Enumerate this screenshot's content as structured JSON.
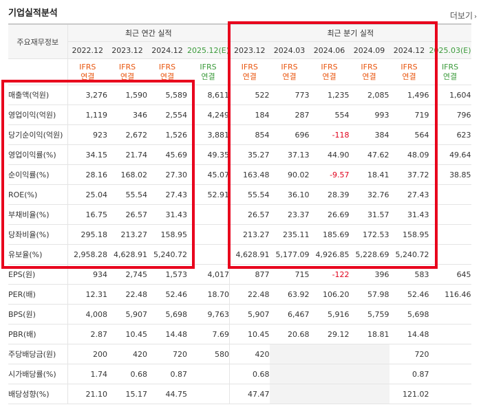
{
  "section_title": "기업실적분석",
  "more_link": "더보기",
  "more_icon": "chevron-right-icon",
  "corner_label": "주요재무정보",
  "group_annual": "최근 연간 실적",
  "group_quarterly": "최근 분기 실적",
  "periods": [
    "2022.12",
    "2023.12",
    "2024.12",
    "2025.12(E)",
    "2023.12",
    "2024.03",
    "2024.06",
    "2024.09",
    "2024.12",
    "2025.03(E)"
  ],
  "standard_line1": "IFRS",
  "standard_line2": "연결",
  "rows": [
    {
      "label": "매출액(억원)",
      "values": [
        "3,276",
        "1,590",
        "5,589",
        "8,611",
        "522",
        "773",
        "1,235",
        "2,085",
        "1,496",
        "1,604"
      ]
    },
    {
      "label": "영업이익(억원)",
      "values": [
        "1,119",
        "346",
        "2,554",
        "4,249",
        "184",
        "287",
        "554",
        "993",
        "719",
        "796"
      ]
    },
    {
      "label": "당기순이익(억원)",
      "values": [
        "923",
        "2,672",
        "1,526",
        "3,881",
        "854",
        "696",
        "-118",
        "384",
        "564",
        "623"
      ]
    },
    {
      "label": "영업이익률(%)",
      "values": [
        "34.15",
        "21.74",
        "45.69",
        "49.35",
        "35.27",
        "37.13",
        "44.90",
        "47.62",
        "48.09",
        "49.64"
      ]
    },
    {
      "label": "순이익률(%)",
      "values": [
        "28.16",
        "168.02",
        "27.30",
        "45.07",
        "163.48",
        "90.02",
        "-9.57",
        "18.41",
        "37.72",
        "38.85"
      ]
    },
    {
      "label": "ROE(%)",
      "values": [
        "25.04",
        "55.54",
        "27.43",
        "52.91",
        "55.54",
        "36.10",
        "28.39",
        "32.76",
        "27.43",
        ""
      ]
    },
    {
      "label": "부채비율(%)",
      "values": [
        "16.75",
        "26.57",
        "31.43",
        "",
        "26.57",
        "23.37",
        "26.69",
        "31.57",
        "31.43",
        ""
      ]
    },
    {
      "label": "당좌비율(%)",
      "values": [
        "295.18",
        "213.27",
        "158.95",
        "",
        "213.27",
        "235.11",
        "185.69",
        "172.53",
        "158.95",
        ""
      ]
    },
    {
      "label": "유보율(%)",
      "values": [
        "2,958.28",
        "4,628.91",
        "5,240.72",
        "",
        "4,628.91",
        "5,177.09",
        "4,926.85",
        "5,228.69",
        "5,240.72",
        ""
      ]
    },
    {
      "label": "EPS(원)",
      "values": [
        "934",
        "2,745",
        "1,573",
        "4,017",
        "877",
        "715",
        "-122",
        "396",
        "583",
        "645"
      ]
    },
    {
      "label": "PER(배)",
      "values": [
        "12.31",
        "22.48",
        "52.46",
        "18.70",
        "22.48",
        "63.92",
        "106.20",
        "57.98",
        "52.46",
        "116.46"
      ]
    },
    {
      "label": "BPS(원)",
      "values": [
        "4,008",
        "5,907",
        "5,698",
        "9,763",
        "5,907",
        "6,467",
        "5,916",
        "5,759",
        "5,698",
        ""
      ]
    },
    {
      "label": "PBR(배)",
      "values": [
        "2.87",
        "10.45",
        "14.48",
        "7.69",
        "10.45",
        "20.68",
        "29.12",
        "18.81",
        "14.48",
        ""
      ]
    },
    {
      "label": "주당배당금(원)",
      "values": [
        "200",
        "420",
        "720",
        "580",
        "420",
        "",
        "",
        "",
        "720",
        ""
      ]
    },
    {
      "label": "시가배당률(%)",
      "values": [
        "1.74",
        "0.68",
        "0.87",
        "",
        "0.68",
        "",
        "",
        "",
        "0.87",
        ""
      ]
    },
    {
      "label": "배당성향(%)",
      "values": [
        "21.10",
        "15.17",
        "44.75",
        "",
        "47.47",
        "",
        "",
        "",
        "121.02",
        ""
      ]
    }
  ],
  "highlight_color": "#e8001c",
  "negative_color": "#e0001b",
  "estimate_color": "#3a9a3a",
  "standard_color": "#e8550e"
}
